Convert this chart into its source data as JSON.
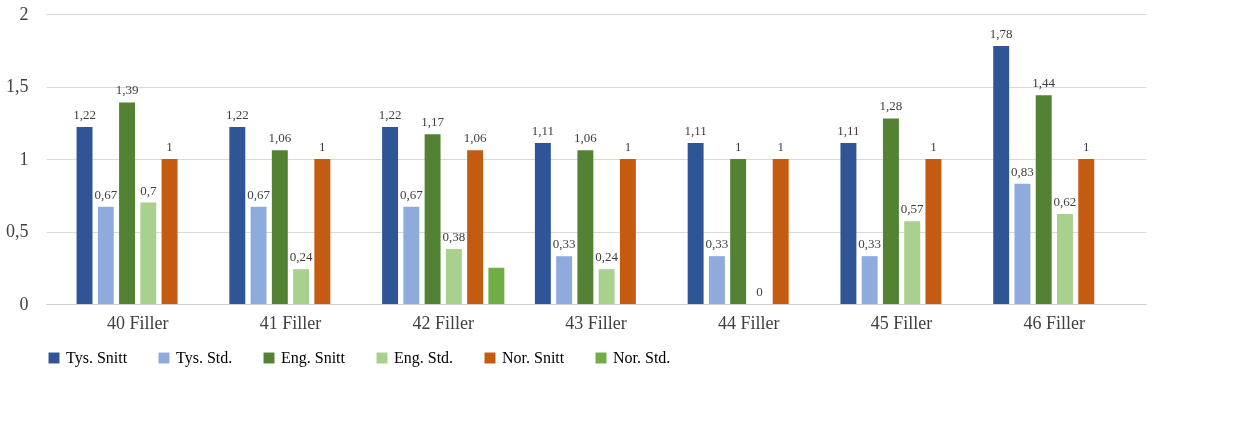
{
  "chart_data": {
    "type": "bar",
    "categories": [
      "40 Filler",
      "41 Filler",
      "42 Filler",
      "43 Filler",
      "44 Filler",
      "45 Filler",
      "46 Filler"
    ],
    "ylim": [
      0,
      2
    ],
    "yticks": [
      0,
      {
        "value": 0.5,
        "label": "0,5"
      },
      1,
      {
        "value": 1.5,
        "label": "1,5"
      },
      2
    ],
    "grid": "y",
    "legend": "bottom",
    "series": [
      {
        "name": "Tys. Snitt",
        "color": "#2f5597",
        "values": [
          1.22,
          1.22,
          1.22,
          1.11,
          1.11,
          1.11,
          1.78
        ],
        "value_labels": [
          "1,22",
          "1,22",
          "1,22",
          "1,11",
          "1,11",
          "1,11",
          "1,78"
        ]
      },
      {
        "name": "Tys. Std.",
        "color": "#8faadc",
        "values": [
          0.67,
          0.67,
          0.67,
          0.33,
          0.33,
          0.33,
          0.83
        ],
        "value_labels": [
          "0,67",
          "0,67",
          "0,67",
          "0,33",
          "0,33",
          "0,33",
          "0,83"
        ]
      },
      {
        "name": "Eng. Snitt",
        "color": "#548235",
        "values": [
          1.39,
          1.06,
          1.17,
          1.06,
          1,
          1.28,
          1.44
        ],
        "value_labels": [
          "1,39",
          "1,06",
          "1,17",
          "1,06",
          "1",
          "1,28",
          "1,44"
        ]
      },
      {
        "name": "Eng. Std.",
        "color": "#a9d18e",
        "values": [
          0.7,
          0.24,
          0.38,
          0.24,
          0,
          0.57,
          0.62
        ],
        "value_labels": [
          "0,7",
          "0,24",
          "0,38",
          "0,24",
          "0",
          "0,57",
          "0,62"
        ]
      },
      {
        "name": "Nor. Snitt",
        "color": "#c55a11",
        "values": [
          1,
          1,
          1.06,
          1,
          1,
          1,
          1
        ],
        "value_labels": [
          "1",
          "1",
          "1,06",
          "1",
          "1",
          "1",
          "1"
        ]
      },
      {
        "name": "Nor. Std.",
        "color": "#70ad47",
        "values": [
          null,
          null,
          0.25,
          null,
          null,
          null,
          null
        ]
      }
    ]
  }
}
